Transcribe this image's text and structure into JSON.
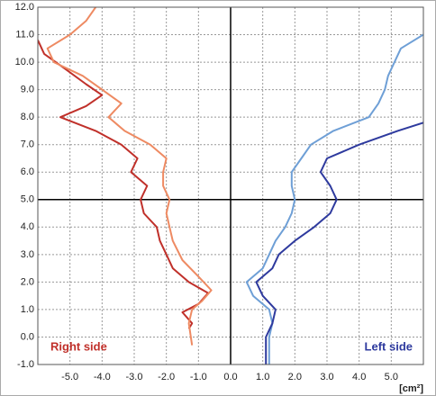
{
  "chart_data": {
    "type": "line",
    "orientation": "x-of-y",
    "x_label": "[cm²]",
    "annotations": [
      {
        "text": "Right side",
        "color": "#c0302a"
      },
      {
        "text": "Left side",
        "color": "#2e3a9e"
      }
    ],
    "xlim": [
      -6,
      6
    ],
    "ylim": [
      -1,
      12
    ],
    "xticks": [
      {
        "value": -5,
        "label": "-5.0"
      },
      {
        "value": -4,
        "label": "-4.0"
      },
      {
        "value": -3,
        "label": "-3.0"
      },
      {
        "value": -2,
        "label": "-2.0"
      },
      {
        "value": -1,
        "label": "-1.0"
      },
      {
        "value": 0,
        "label": "0.0"
      },
      {
        "value": 1,
        "label": "1.0"
      },
      {
        "value": 2,
        "label": "2.0"
      },
      {
        "value": 3,
        "label": "3.0"
      },
      {
        "value": 4,
        "label": "4.0"
      },
      {
        "value": 5,
        "label": "5.0"
      }
    ],
    "yticks": [
      {
        "value": -1,
        "label": "-1.0"
      },
      {
        "value": 0,
        "label": "0.0"
      },
      {
        "value": 1,
        "label": "1.0"
      },
      {
        "value": 2,
        "label": "2.0"
      },
      {
        "value": 3,
        "label": "3.0"
      },
      {
        "value": 4,
        "label": "4.0"
      },
      {
        "value": 5,
        "label": "5.0"
      },
      {
        "value": 6,
        "label": "6.0"
      },
      {
        "value": 7,
        "label": "7.0"
      },
      {
        "value": 8,
        "label": "8.0"
      },
      {
        "value": 9,
        "label": "9.0"
      },
      {
        "value": 10,
        "label": "10.0"
      },
      {
        "value": 11,
        "label": "11.0"
      },
      {
        "value": 12,
        "label": "12.0"
      }
    ],
    "grid": true,
    "reference_lines": {
      "x": 0,
      "y": 5
    },
    "series": [
      {
        "color": "#c0302a",
        "y": [
          0.3,
          0.5,
          0.9,
          1.2,
          1.6,
          2.0,
          2.5,
          3.0,
          3.5,
          4.0,
          4.5,
          5.0,
          5.5,
          6.0,
          6.5,
          7.0,
          7.5,
          8.0,
          8.4,
          8.8,
          9.2,
          9.8,
          10.3,
          10.8
        ],
        "x": [
          -1.3,
          -1.2,
          -1.5,
          -1.0,
          -0.7,
          -1.3,
          -1.8,
          -2.0,
          -2.2,
          -2.3,
          -2.7,
          -2.8,
          -2.6,
          -3.1,
          -2.9,
          -3.4,
          -4.2,
          -5.3,
          -4.5,
          -4.0,
          -4.5,
          -5.2,
          -5.8,
          -6.0
        ]
      },
      {
        "color": "#ee8a62",
        "y": [
          -0.3,
          0.5,
          1.0,
          1.3,
          1.7,
          2.2,
          2.8,
          3.5,
          4.0,
          4.5,
          5.0,
          5.5,
          6.0,
          6.5,
          7.0,
          7.5,
          8.0,
          8.5,
          9.0,
          9.5,
          10.0,
          10.5,
          11.0,
          11.5,
          12.0
        ],
        "x": [
          -1.2,
          -1.3,
          -1.2,
          -0.9,
          -0.6,
          -1.0,
          -1.5,
          -1.8,
          -1.9,
          -2.0,
          -1.9,
          -2.1,
          -2.1,
          -2.0,
          -2.5,
          -3.3,
          -3.8,
          -3.4,
          -4.0,
          -4.6,
          -5.5,
          -5.7,
          -5.0,
          -4.5,
          -4.2
        ]
      },
      {
        "color": "#6e9fd6",
        "y": [
          -1.0,
          0.0,
          0.5,
          1.0,
          1.5,
          2.0,
          2.5,
          3.0,
          3.5,
          4.0,
          4.5,
          5.0,
          5.5,
          6.0,
          6.5,
          7.0,
          7.5,
          8.0,
          8.5,
          9.0,
          9.5,
          10.0,
          10.5,
          11.0
        ],
        "x": [
          1.2,
          1.2,
          1.3,
          1.2,
          0.7,
          0.5,
          1.0,
          1.2,
          1.4,
          1.7,
          1.9,
          2.0,
          1.9,
          1.9,
          2.2,
          2.5,
          3.2,
          4.3,
          4.6,
          4.8,
          4.9,
          5.1,
          5.3,
          6.0
        ]
      },
      {
        "color": "#2e3a9e",
        "y": [
          -1.0,
          0.0,
          0.5,
          1.0,
          1.5,
          2.0,
          2.5,
          3.0,
          3.5,
          4.0,
          4.5,
          5.0,
          5.5,
          6.0,
          6.5,
          7.0,
          7.5,
          7.8
        ],
        "x": [
          1.1,
          1.1,
          1.3,
          1.4,
          1.0,
          0.8,
          1.3,
          1.5,
          2.0,
          2.6,
          3.1,
          3.3,
          3.1,
          2.8,
          3.0,
          4.0,
          5.2,
          6.0
        ]
      }
    ]
  }
}
